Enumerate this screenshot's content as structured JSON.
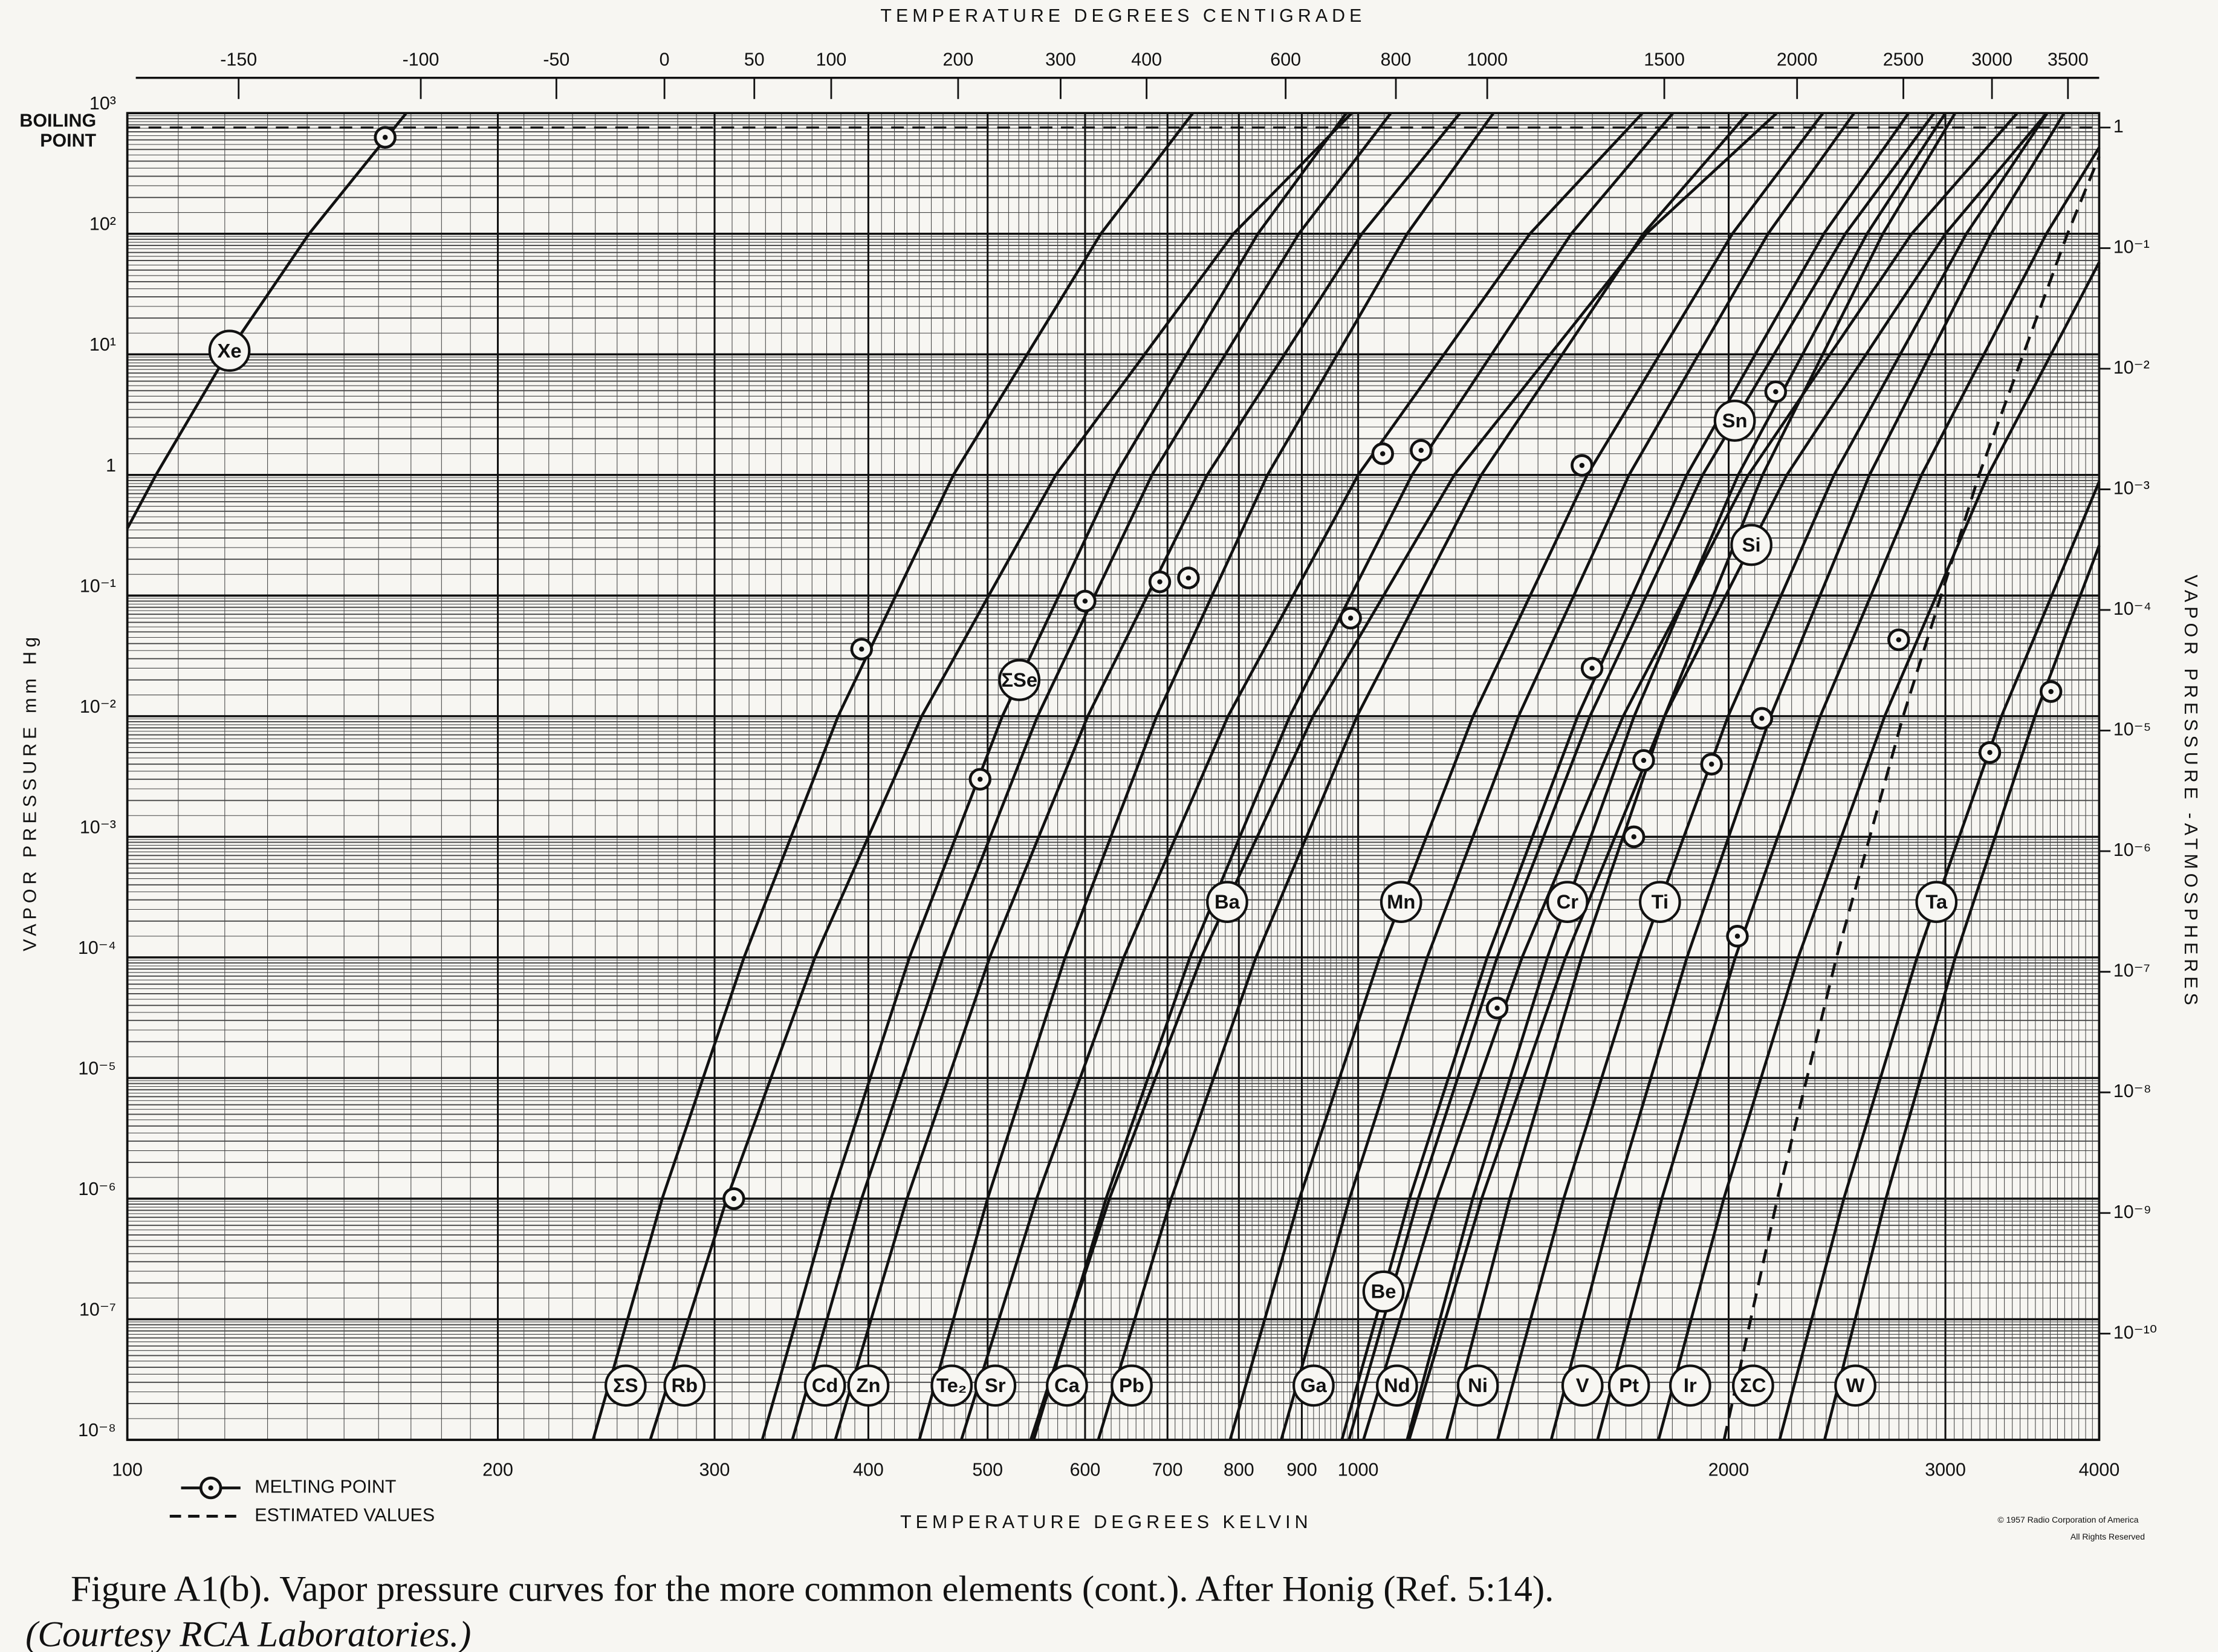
{
  "chart_data": {
    "type": "line",
    "title": "TEMPERATURE DEGREES CENTIGRADE",
    "x_label": "TEMPERATURE DEGREES KELVIN",
    "y_label": "VAPOR PRESSURE  mm Hg",
    "y2_label": "VAPOR PRESSURE -ATMOSPHERES",
    "caption": [
      "Figure A1(b). Vapor pressure curves for the more common elements (cont.). After Honig (Ref. 5:14).",
      "(Courtesy RCA Laboratories.)"
    ],
    "copyright": [
      "© 1957 Radio Corporation of America",
      "All Rights Reserved"
    ],
    "x_log": true,
    "y_log": true,
    "grid": true,
    "minor_grid": true,
    "color": "#111111",
    "xlim": [
      100,
      4000
    ],
    "xticks": [
      100,
      200,
      300,
      400,
      500,
      600,
      700,
      800,
      900,
      1000,
      2000,
      3000,
      4000
    ],
    "x2lim": [
      -173.15,
      3726.85
    ],
    "x2ticks": [
      -150,
      -100,
      -50,
      0,
      50,
      100,
      200,
      300,
      400,
      600,
      800,
      1000,
      1500,
      2000,
      2500,
      3000,
      3500
    ],
    "ylim": [
      1e-08,
      1000
    ],
    "yticks": [
      {
        "value": 1000,
        "label": "10³"
      },
      {
        "value": 100,
        "label": "10²"
      },
      {
        "value": 10,
        "label": "10¹"
      },
      1,
      {
        "value": 0.1,
        "label": "10⁻¹"
      },
      {
        "value": 0.01,
        "label": "10⁻²"
      },
      {
        "value": 0.001,
        "label": "10⁻³"
      },
      {
        "value": 0.0001,
        "label": "10⁻⁴"
      },
      {
        "value": 1e-05,
        "label": "10⁻⁵"
      },
      {
        "value": 1e-06,
        "label": "10⁻⁶"
      },
      {
        "value": 1e-07,
        "label": "10⁻⁷"
      },
      {
        "value": 1e-08,
        "label": "10⁻⁸"
      }
    ],
    "y2lim": [
      1.3157894736842107e-11,
      1.3157894736842106
    ],
    "y2ticks": [
      1,
      {
        "value": 0.1,
        "label": "10⁻¹"
      },
      {
        "value": 0.01,
        "label": "10⁻²"
      },
      {
        "value": 0.001,
        "label": "10⁻³"
      },
      {
        "value": 0.0001,
        "label": "10⁻⁴"
      },
      {
        "value": 1e-05,
        "label": "10⁻⁵"
      },
      {
        "value": 1e-06,
        "label": "10⁻⁶"
      },
      {
        "value": 1e-07,
        "label": "10⁻⁷"
      },
      {
        "value": 1e-08,
        "label": "10⁻⁸"
      },
      {
        "value": 1e-09,
        "label": "10⁻⁹"
      },
      {
        "value": 1e-10,
        "label": "10⁻¹⁰"
      }
    ],
    "boiling_point": {
      "label": [
        "BOILING",
        "POINT"
      ],
      "value": 760
    },
    "series": [
      {
        "name": "Xe",
        "x": [
          100,
          105.5,
          120.5,
          140.5,
          168.5
        ],
        "values": [
          0.36,
          1,
          10,
          100,
          1000
        ]
      },
      {
        "name": "ΣS",
        "x": [
          239,
          272,
          317,
          378,
          469,
          618,
          734
        ],
        "values": [
          1e-08,
          1e-06,
          0.0001,
          0.01,
          1,
          100,
          1000
        ]
      },
      {
        "name": "Rb",
        "x": [
          266,
          307,
          362,
          442,
          568,
          792,
          988
        ],
        "values": [
          1e-08,
          1e-06,
          0.0001,
          0.01,
          1,
          100,
          1000
        ]
      },
      {
        "name": "ΣSe",
        "x": [
          328,
          373,
          432,
          514,
          635,
          829,
          978
        ],
        "values": [
          1e-08,
          1e-06,
          0.0001,
          0.01,
          1,
          100,
          1000
        ]
      },
      {
        "name": "Cd",
        "x": [
          347,
          395,
          460,
          549,
          680,
          895,
          1063
        ],
        "values": [
          1e-08,
          1e-06,
          0.0001,
          0.01,
          1,
          100,
          1000
        ]
      },
      {
        "name": "Zn",
        "x": [
          376,
          430,
          502,
          603,
          754,
          1007,
          1210
        ],
        "values": [
          1e-08,
          1e-06,
          0.0001,
          0.01,
          1,
          100,
          1000
        ]
      },
      {
        "name": "Te₂",
        "x": [
          440,
          500,
          578,
          686,
          844,
          1096,
          1288
        ],
        "values": [
          1e-08,
          1e-06,
          0.0001,
          0.01,
          1,
          100,
          1000
        ]
      },
      {
        "name": "Sr",
        "x": [
          476,
          548,
          645,
          784,
          1000,
          1379,
          1702
        ],
        "values": [
          1e-08,
          1e-06,
          0.0001,
          0.01,
          1,
          100,
          1000
        ]
      },
      {
        "name": "Ca",
        "x": [
          545,
          624,
          730,
          880,
          1106,
          1490,
          1802
        ],
        "values": [
          1e-08,
          1e-06,
          0.0001,
          0.01,
          1,
          100,
          1000
        ]
      },
      {
        "name": "Pb",
        "x": [
          615,
          705,
          826,
          998,
          1259,
          1705,
          2073
        ],
        "values": [
          1e-08,
          1e-06,
          0.0001,
          0.01,
          1,
          100,
          1000
        ]
      },
      {
        "name": "Ba",
        "x": [
          542,
          628,
          746,
          919,
          1197,
          1714,
          2188
        ],
        "values": [
          1e-08,
          1e-06,
          0.0001,
          0.01,
          1,
          100,
          1000
        ]
      },
      {
        "name": "Ga",
        "x": [
          866,
          984,
          1138,
          1350,
          1660,
          2153,
          2529
        ],
        "values": [
          1e-08,
          1e-06,
          0.0001,
          0.01,
          1,
          100,
          1000
        ]
      },
      {
        "name": "Nd",
        "x": [
          1010,
          1159,
          1359,
          1642,
          2075,
          2817,
          3431
        ],
        "values": [
          1e-08,
          1e-06,
          0.0001,
          0.01,
          1,
          100,
          1000
        ]
      },
      {
        "name": "Be",
        "x": [
          970,
          1101,
          1273,
          1508,
          1849,
          2390,
          2800
        ],
        "values": [
          1e-08,
          1e-06,
          0.0001,
          0.01,
          1,
          100,
          1000
        ]
      },
      {
        "name": "Mn",
        "x": [
          787,
          896,
          1041,
          1240,
          1535,
          2014,
          2386
        ],
        "values": [
          1e-08,
          1e-06,
          0.0001,
          0.01,
          1,
          100,
          1000
        ]
      },
      {
        "name": "Ni",
        "x": [
          1180,
          1328,
          1519,
          1774,
          2131,
          2669,
          3055
        ],
        "values": [
          1e-08,
          1e-06,
          0.0001,
          0.01,
          1,
          100,
          1000
        ]
      },
      {
        "name": "V",
        "x": [
          1435,
          1616,
          1850,
          2163,
          2603,
          3268,
          3746
        ],
        "values": [
          1e-08,
          1e-06,
          0.0001,
          0.01,
          1,
          100,
          1000
        ]
      },
      {
        "name": "Pt",
        "x": [
          1565,
          1765,
          2025,
          2374,
          2869,
          3624,
          4000
        ],
        "values": [
          1e-08,
          1e-06,
          0.0001,
          0.01,
          1,
          100,
          519
        ]
      },
      {
        "name": "Cr",
        "x": [
          1096,
          1239,
          1425,
          1676,
          2036,
          2591,
          3000
        ],
        "values": [
          1e-08,
          1e-06,
          0.0001,
          0.01,
          1,
          100,
          1000
        ]
      },
      {
        "name": "Ti",
        "x": [
          1298,
          1469,
          1693,
          1998,
          2436,
          3120,
          3629
        ],
        "values": [
          1e-08,
          1e-06,
          0.0001,
          0.01,
          1,
          100,
          1000
        ]
      },
      {
        "name": "Ir",
        "x": [
          1754,
          1982,
          2278,
          2678,
          3249,
          4000
        ],
        "values": [
          1e-08,
          1e-06,
          0.0001,
          0.01,
          1,
          58
        ]
      },
      {
        "name": "ΣC",
        "dashed": true,
        "x": [
          1983,
          2191,
          2447,
          2772,
          3195,
          3770,
          4000
        ],
        "values": [
          1e-08,
          1e-06,
          0.0001,
          0.01,
          1,
          100,
          437
        ]
      },
      {
        "name": "Sn",
        "x": [
          983,
          1119,
          1297,
          1543,
          1905,
          2488,
          2937
        ],
        "values": [
          1e-08,
          1e-06,
          0.0001,
          0.01,
          1,
          100,
          1000
        ]
      },
      {
        "name": "Si",
        "x": [
          1100,
          1260,
          1474,
          1774,
          2230,
          3000,
          3626
        ],
        "values": [
          1e-08,
          1e-06,
          0.0001,
          0.01,
          1,
          100,
          1000
        ]
      },
      {
        "name": "W",
        "x": [
          2393,
          2684,
          3056,
          3547,
          4000
        ],
        "values": [
          1e-08,
          1e-06,
          0.0001,
          0.01,
          0.26
        ]
      },
      {
        "name": "Ta",
        "x": [
          2200,
          2481,
          2845,
          3332,
          4000
        ],
        "values": [
          1e-08,
          1e-06,
          0.0001,
          0.01,
          0.88
        ]
      }
    ],
    "melting_points": {
      "name": "MELTING POINT",
      "x": [
        162,
        395,
        311,
        493,
        600,
        690,
        728,
        1047,
        986,
        1125,
        1520,
        1297,
        1549,
        1706,
        1675,
        1937,
        2033,
        2128,
        2184,
        2749,
        3260,
        3655
      ],
      "values": [
        630,
        0.036,
        1e-06,
        0.003,
        0.09,
        0.13,
        0.14,
        1.5,
        0.065,
        1.6,
        1.2,
        3.8e-05,
        0.025,
        0.0043,
        0.001,
        0.004,
        0.00015,
        0.0096,
        4.9,
        0.043,
        0.005,
        0.016
      ]
    },
    "dashed_legend": "ESTIMATED VALUES"
  }
}
